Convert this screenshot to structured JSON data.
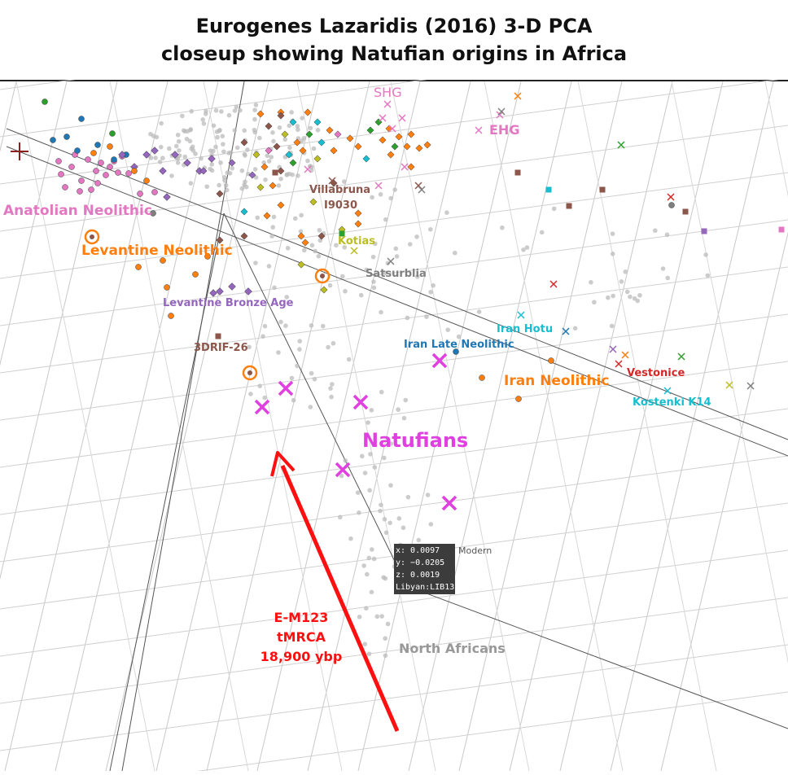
{
  "title": {
    "line1": "Eurogenes Lazaridis (2016) 3-D PCA",
    "line2": "closeup showing Natufian origins in Africa"
  },
  "tooltip": {
    "x": "x: 0.0097",
    "y": "y: −0.0205",
    "z": "z: 0.0019",
    "sample": "Libyan:LIB13",
    "trace": "Modern"
  },
  "colors": {
    "anatolian": "#e377c2",
    "levantine": "#ff7f0e",
    "bronze": "#9467bd",
    "brown": "#8c564b",
    "olive": "#bcbd22",
    "teal": "#17becf",
    "iran_late": "#1f77b4",
    "red": "#d62728",
    "green": "#2ca02c",
    "natufian": "#e040e0",
    "modern": "#bbbbbb",
    "arrow": "#ff1010",
    "grey": "#7f7f7f"
  },
  "chart_data": {
    "type": "scatter",
    "projection": "3-D",
    "grid": true,
    "labels": [
      {
        "text": "Anatolian Neolithic",
        "color": "#e377c2"
      },
      {
        "text": "Levantine Neolithic",
        "color": "#ff7f0e"
      },
      {
        "text": "Levantine Bronze Age",
        "color": "#9467bd"
      },
      {
        "text": "3DRIF-26",
        "color": "#8c564b"
      },
      {
        "text": "Villabruna",
        "color": "#8c564b"
      },
      {
        "text": "I9030",
        "color": "#8c564b"
      },
      {
        "text": "Kotias",
        "color": "#bcbd22"
      },
      {
        "text": "Satsurblia",
        "color": "#7f7f7f"
      },
      {
        "text": "SHG",
        "color": "#e377c2"
      },
      {
        "text": "EHG",
        "color": "#e377c2"
      },
      {
        "text": "Iran Hotu",
        "color": "#17becf"
      },
      {
        "text": "Iran Late Neolithic",
        "color": "#1f77b4"
      },
      {
        "text": "Iran Neolithic",
        "color": "#ff7f0e"
      },
      {
        "text": "Vestonice",
        "color": "#d62728"
      },
      {
        "text": "Kostenki K14",
        "color": "#17becf"
      },
      {
        "text": "Natufians",
        "color": "#e040e0"
      },
      {
        "text": "North Africans",
        "color": "#999999"
      }
    ],
    "annotation": {
      "lines": [
        "E-M123",
        "tMRCA",
        "18,900 ybp"
      ],
      "color": "#ff1010"
    },
    "hover_point": {
      "x": 0.0097,
      "y": -0.0205,
      "z": 0.0019,
      "name": "Libyan:LIB13",
      "series": "Modern"
    }
  }
}
